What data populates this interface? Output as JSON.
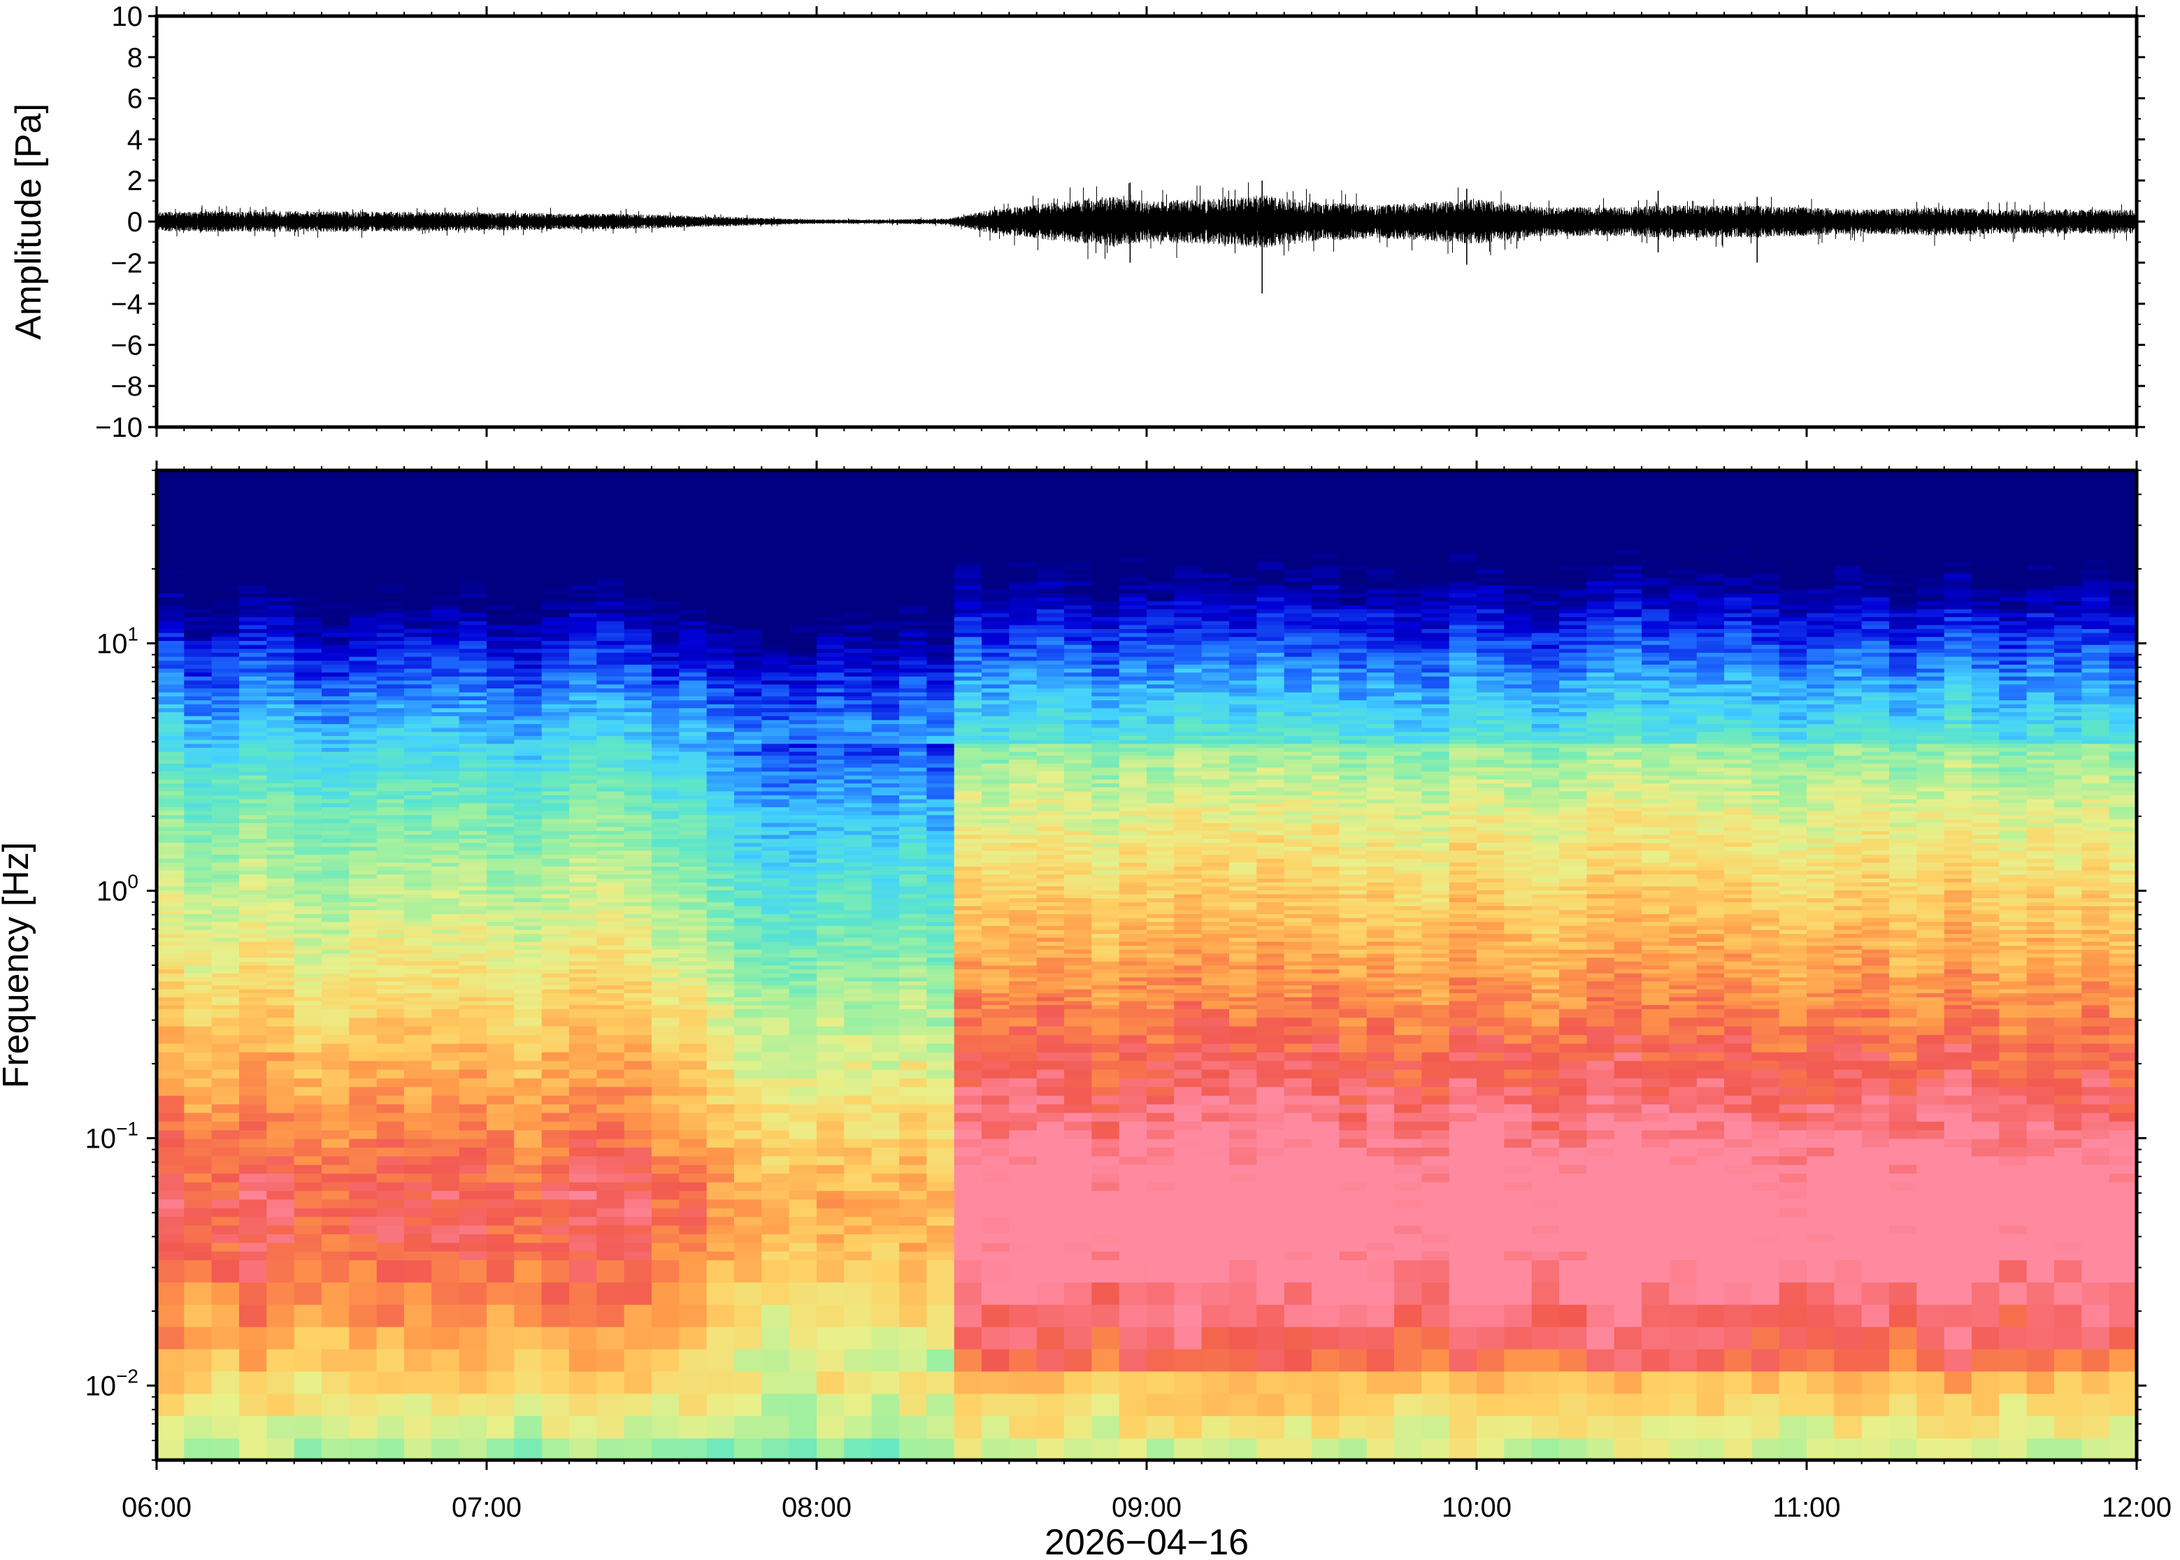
{
  "chart_data": [
    {
      "type": "line",
      "panel": "waveform",
      "ylabel": "Amplitude [Pa]",
      "ylim": [
        -10,
        10
      ],
      "y_ticks": [
        "10",
        "8",
        "6",
        "4",
        "2",
        "0",
        "−2",
        "−4",
        "−6",
        "−8",
        "−10"
      ],
      "xlim": [
        "2026-04-16 06:00",
        "2026-04-16 12:00"
      ],
      "line_color": "#000000",
      "series": [
        {
          "envelope_x_hours": [
            6.0,
            6.5,
            7.0,
            7.5,
            7.8,
            8.0,
            8.2,
            8.4,
            8.5,
            8.7,
            8.9,
            9.0,
            9.2,
            9.35,
            9.5,
            9.7,
            9.9,
            10.0,
            10.2,
            10.4,
            10.6,
            10.8,
            11.0,
            11.2,
            11.4,
            11.6,
            11.8,
            12.0
          ],
          "envelope_amplitude_pa": [
            0.5,
            0.5,
            0.45,
            0.35,
            0.2,
            0.1,
            0.1,
            0.15,
            0.5,
            0.9,
            1.2,
            1.0,
            1.1,
            1.3,
            1.0,
            0.8,
            1.0,
            1.1,
            0.7,
            0.7,
            0.8,
            0.8,
            0.7,
            0.6,
            0.7,
            0.6,
            0.6,
            0.6
          ],
          "spikes": [
            {
              "x_hours": 8.95,
              "min": -2.0,
              "max": 1.9
            },
            {
              "x_hours": 9.35,
              "min": -3.5,
              "max": 2.0
            },
            {
              "x_hours": 9.97,
              "min": -2.1,
              "max": 1.6
            },
            {
              "x_hours": 10.55,
              "min": -1.5,
              "max": 1.5
            },
            {
              "x_hours": 10.85,
              "min": -2.0,
              "max": 1.2
            }
          ]
        }
      ]
    },
    {
      "type": "heatmap",
      "panel": "spectrogram",
      "ylabel": "Frequency [Hz]",
      "y_scale": "log",
      "ylim": [
        0.005,
        50
      ],
      "y_ticks": [
        {
          "base": "10",
          "exp": "1"
        },
        {
          "base": "10",
          "exp": "0"
        },
        {
          "base": "10",
          "exp": "−1"
        },
        {
          "base": "10",
          "exp": "−2"
        }
      ],
      "xlabel": "2026−04−16",
      "x_ticks": [
        "06:00",
        "07:00",
        "08:00",
        "09:00",
        "10:00",
        "11:00",
        "12:00"
      ],
      "xlim": [
        "2026-04-16 06:00",
        "2026-04-16 12:00"
      ],
      "colormap": "jet",
      "colors": [
        "#000080",
        "#0000d8",
        "#1e6cff",
        "#43d1ff",
        "#5ee6c8",
        "#9ef0a0",
        "#e8f08a",
        "#ffd064",
        "#ff9a4a",
        "#f25a50",
        "#ff8aa0"
      ],
      "features": {
        "quiet_interval_hours": [
          7.85,
          8.45
        ],
        "loudest_band_hz": [
          0.02,
          0.15
        ]
      }
    }
  ]
}
